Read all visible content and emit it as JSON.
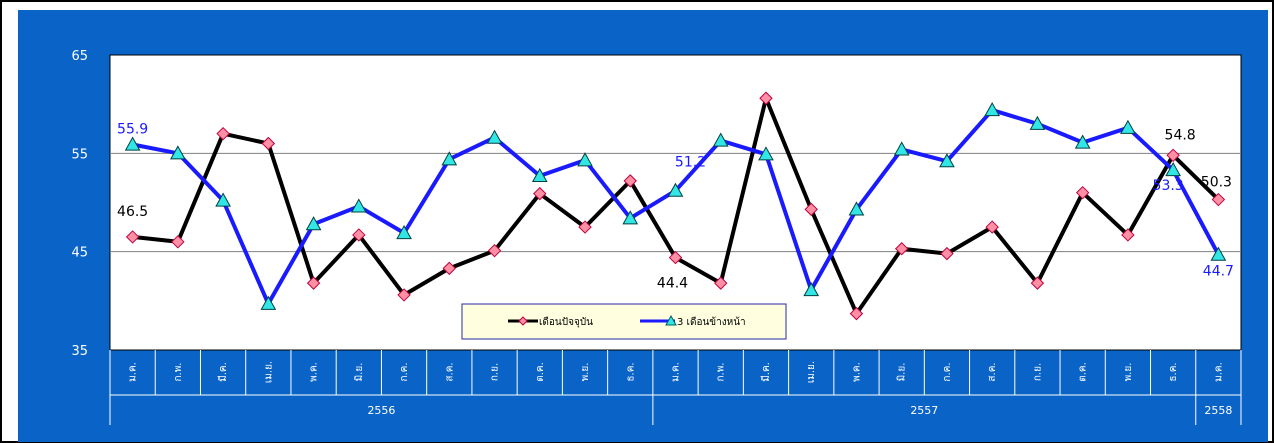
{
  "chart_data": {
    "type": "line",
    "title": "",
    "xlabel": "",
    "ylabel": "",
    "ylim": [
      35,
      65
    ],
    "yticks": [
      35,
      45,
      55,
      65
    ],
    "grid": true,
    "legend_position": "bottom-center",
    "categories": [
      "ม.ค.",
      "ก.พ.",
      "มี.ค.",
      "เม.ย.",
      "พ.ค.",
      "มิ.ย.",
      "ก.ค.",
      "ส.ค.",
      "ก.ย.",
      "ต.ค.",
      "พ.ย.",
      "ธ.ค.",
      "ม.ค.",
      "ก.พ.",
      "มี.ค.",
      "เม.ย.",
      "พ.ค.",
      "มิ.ย.",
      "ก.ค.",
      "ส.ค.",
      "ก.ย.",
      "ต.ค.",
      "พ.ย.",
      "ธ.ค.",
      "ม.ค."
    ],
    "year_groups": [
      {
        "label": "2556",
        "count": 12
      },
      {
        "label": "2557",
        "count": 12
      },
      {
        "label": "2558",
        "count": 1
      }
    ],
    "series": [
      {
        "name": "เดือนปัจจุบัน",
        "color": "#000000",
        "marker": "diamond",
        "marker_color": "#ff8fa3",
        "values": [
          46.5,
          46.0,
          57.0,
          56.0,
          41.8,
          46.7,
          40.6,
          43.3,
          45.1,
          50.9,
          47.5,
          52.2,
          44.4,
          41.8,
          60.6,
          49.3,
          38.7,
          45.3,
          44.8,
          47.5,
          41.8,
          51.0,
          46.7,
          54.8,
          50.3
        ],
        "labels": {
          "0": "46.5",
          "12": "44.4",
          "23": "54.8",
          "24": "50.3"
        }
      },
      {
        "name": "3 เดือนข้างหน้า",
        "color": "#1a1aff",
        "marker": "triangle",
        "marker_color": "#33e6e6",
        "values": [
          55.9,
          55.0,
          50.2,
          39.7,
          47.8,
          49.6,
          46.9,
          54.4,
          56.6,
          52.7,
          54.3,
          48.4,
          51.2,
          56.3,
          54.9,
          41.1,
          49.3,
          55.4,
          54.2,
          59.4,
          58.0,
          56.1,
          57.6,
          53.3,
          44.7
        ],
        "labels": {
          "0": "55.9",
          "12": "51.2",
          "23": "53.3",
          "24": "44.7"
        }
      }
    ]
  }
}
